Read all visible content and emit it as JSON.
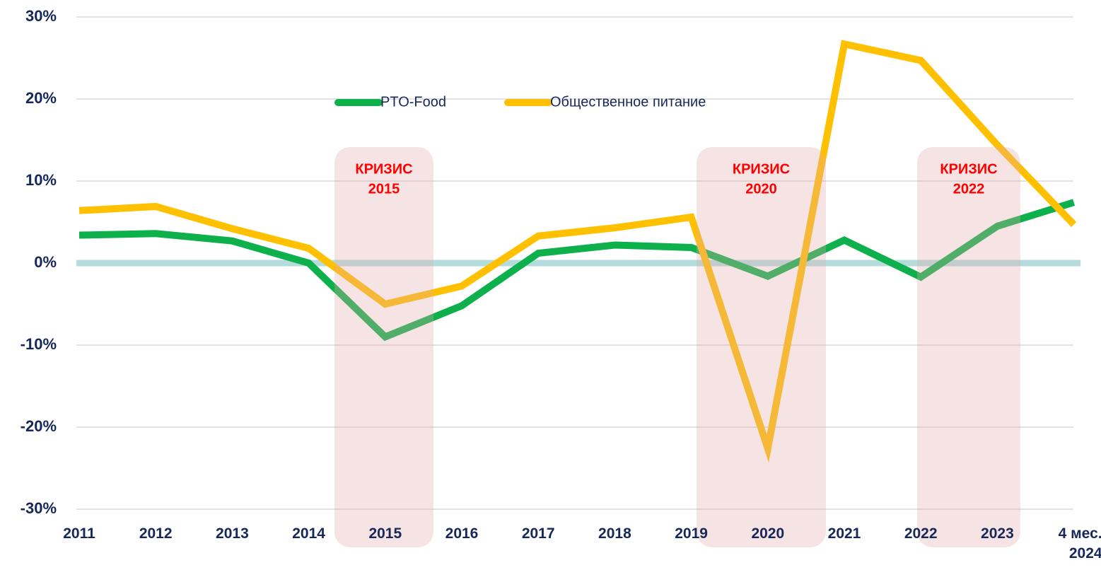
{
  "chart_data": {
    "type": "line",
    "categories": [
      "2011",
      "2012",
      "2013",
      "2014",
      "2015",
      "2016",
      "2017",
      "2018",
      "2019",
      "2020",
      "2021",
      "2022",
      "2023",
      "4 мес. 2024"
    ],
    "series": [
      {
        "name": "PTO-Food",
        "color": "#0db04b",
        "values": [
          3.4,
          3.6,
          2.7,
          0,
          -9.0,
          -5.2,
          1.2,
          2.2,
          1.9,
          -1.6,
          2.8,
          -1.7,
          4.5,
          7.4
        ]
      },
      {
        "name": "Общественное питание",
        "color": "#ffc000",
        "values": [
          6.4,
          6.9,
          4.2,
          1.8,
          -5.0,
          -2.8,
          3.3,
          4.3,
          5.6,
          -22.6,
          26.7,
          24.7,
          14.4,
          4.7
        ]
      }
    ],
    "ylim": [
      -30,
      30
    ],
    "yticks": [
      {
        "value": 30,
        "label": "30%"
      },
      {
        "value": 20,
        "label": "20%"
      },
      {
        "value": 10,
        "label": "10%"
      },
      {
        "value": 0,
        "label": "0%"
      },
      {
        "value": -10,
        "label": "-10%"
      },
      {
        "value": -20,
        "label": "-20%"
      },
      {
        "value": -30,
        "label": "-30%"
      }
    ],
    "grid": true,
    "annotations": [
      {
        "text": [
          "КРИЗИС",
          "2015"
        ]
      },
      {
        "text": [
          "КРИЗИС",
          "2020"
        ]
      },
      {
        "text": [
          "КРИЗИС",
          "2022"
        ]
      }
    ]
  }
}
